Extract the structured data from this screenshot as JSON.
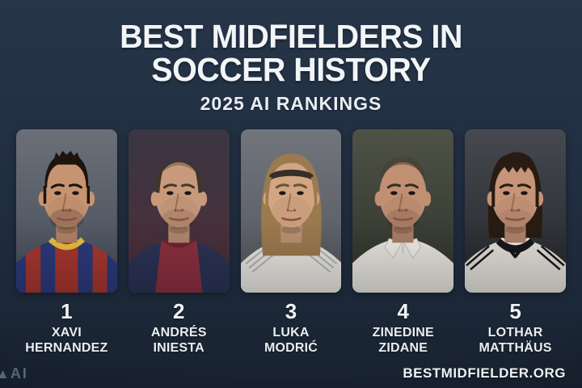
{
  "header": {
    "title_line1": "BEST MIDFIELDERS IN",
    "title_line2": "SOCCER HISTORY",
    "subtitle": "2025 AI RANKINGS"
  },
  "players": [
    {
      "rank": "1",
      "name_line1": "XAVI",
      "name_line2": "HERNANDEZ",
      "avatar": {
        "bg_top": "#6b7078",
        "bg_bottom": "#454c59",
        "skin": "#c79472",
        "hair_color": "#1c140d",
        "brow_color": "#1c140d",
        "hair_style": "short-spiky",
        "stubble": 0.2,
        "shirt_style": "barca-stripes",
        "shirt_primary": "#a93730",
        "shirt_secondary": "#2c3a7e",
        "shirt_accent": "#e9c23f"
      }
    },
    {
      "rank": "2",
      "name_line1": "ANDRÉS",
      "name_line2": "INIESTA",
      "avatar": {
        "bg_top": "#3a3642",
        "bg_bottom": "#4e2e38",
        "skin": "#c89a7c",
        "hair_color": "#40352a",
        "brow_color": "#463929",
        "hair_style": "balding",
        "stubble": 0.1,
        "shirt_style": "barca-dark",
        "shirt_primary": "#8c3040",
        "shirt_secondary": "#2b3356",
        "shirt_accent": "#6d2531"
      }
    },
    {
      "rank": "3",
      "name_line1": "LUKA",
      "name_line2": "MODRIĆ",
      "avatar": {
        "bg_top": "#72757c",
        "bg_bottom": "#53565e",
        "skin": "#d2a583",
        "hair_color": "#9c7a4f",
        "brow_color": "#6b5433",
        "hair_style": "long-headband",
        "headband_color": "#362e28",
        "stubble": 0,
        "shirt_style": "white-crew",
        "shirt_primary": "#eae8e3",
        "shirt_secondary": "#b5b5b0",
        "shirt_accent": "#c6c4bf"
      }
    },
    {
      "rank": "4",
      "name_line1": "ZINEDINE",
      "name_line2": "ZIDANE",
      "avatar": {
        "bg_top": "#4e5247",
        "bg_bottom": "#2e3228",
        "skin": "#c19073",
        "hair_color": "#4a3c2f",
        "brow_color": "#382c21",
        "hair_style": "shaved",
        "stubble": 0.12,
        "shirt_style": "white-polo",
        "shirt_primary": "#e9e6e0",
        "shirt_secondary": "#c7c3ba",
        "shirt_accent": "#f1eee8"
      }
    },
    {
      "rank": "5",
      "name_line1": "LOTHAR",
      "name_line2": "MATTHÄUS",
      "avatar": {
        "bg_top": "#46494f",
        "bg_bottom": "#232529",
        "skin": "#c69478",
        "hair_color": "#281c12",
        "brow_color": "#281c12",
        "hair_style": "dark-full",
        "stubble": 0.08,
        "shirt_style": "germany",
        "shirt_primary": "#e5e2db",
        "shirt_secondary": "#17171c",
        "shirt_accent": "#f3f0e9"
      }
    }
  ],
  "footer": {
    "watermark_text": "AI",
    "website": "BESTMIDFIELDER.ORG"
  },
  "colors": {
    "background_top": "#263549",
    "background_bottom": "#182230",
    "text_primary": "#f2f5f7",
    "watermark": "#5e6c7b"
  }
}
